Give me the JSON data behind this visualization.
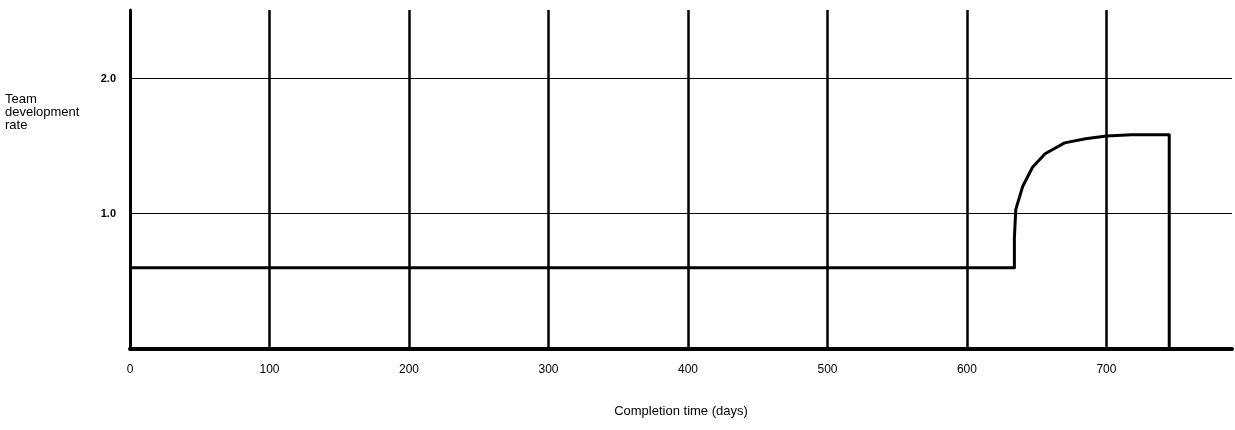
{
  "chart_data": {
    "type": "line",
    "xlabel": "Completion time (days)",
    "ylabel": "Team development rate",
    "x": [
      0,
      634,
      634,
      635,
      640,
      647,
      656,
      670,
      685,
      700,
      718,
      745,
      745
    ],
    "series": [
      {
        "color": "#000000",
        "values": [
          0.6,
          0.6,
          0.82,
          1.03,
          1.2,
          1.34,
          1.44,
          1.52,
          1.55,
          1.57,
          1.58,
          1.58,
          0
        ]
      }
    ],
    "xlim": [
      0,
      790
    ],
    "xticks": [
      0,
      100,
      200,
      300,
      400,
      500,
      600,
      700
    ],
    "ylim": [
      0,
      2.5
    ],
    "yticks": [
      {
        "value": 1,
        "label": "1.0"
      },
      {
        "value": 2,
        "label": "2.0"
      }
    ],
    "grid": true,
    "marker": "none",
    "line_style": "solid"
  }
}
